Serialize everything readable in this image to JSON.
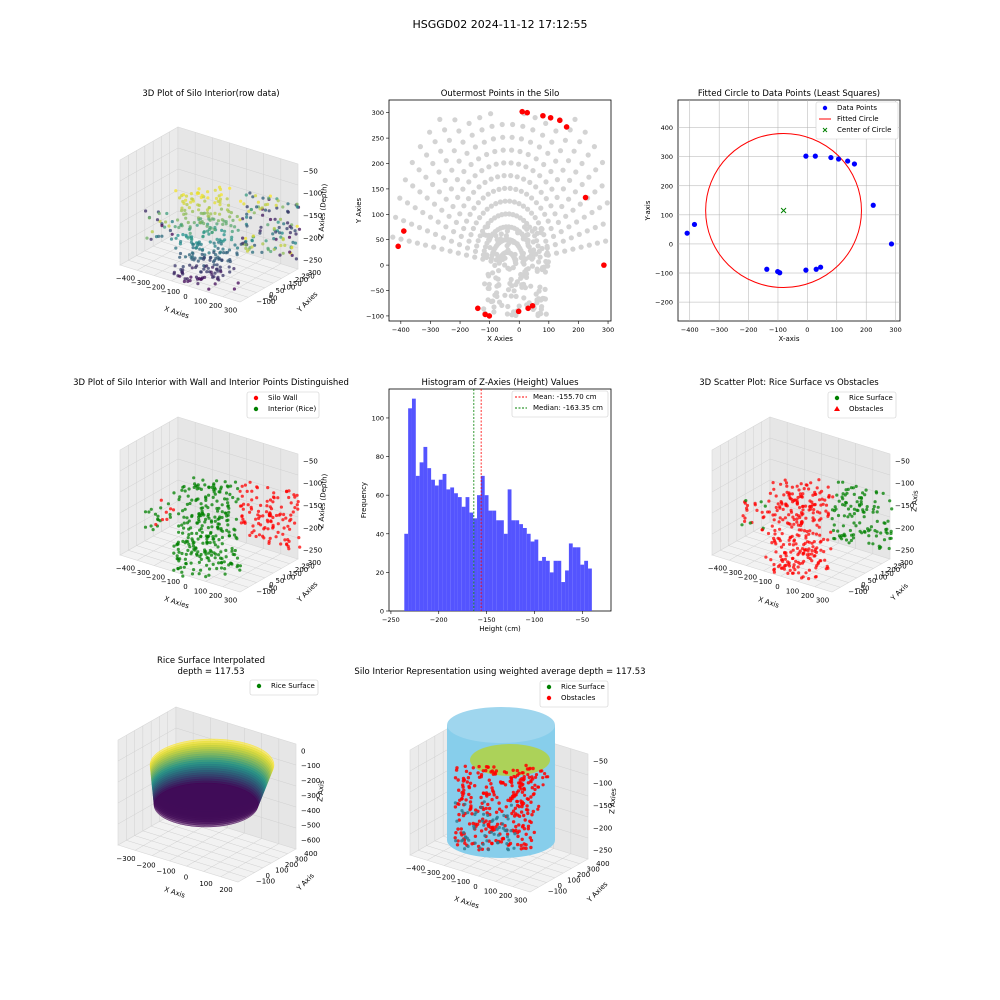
{
  "figure_title": "HSGGD02 2024-11-12 17:12:55",
  "colors": {
    "gray_points": "#d3d3d3",
    "red": "#ff0000",
    "blue": "#0000ff",
    "green": "#008000",
    "hist": "#4b4bff",
    "sky": "#87ceeb",
    "viridis_low": "#440154",
    "viridis_mid": "#21918c",
    "viridis_high": "#fde725"
  },
  "chart_data": [
    {
      "id": "p1",
      "type": "scatter3d",
      "title": "3D Plot of Silo Interior(row data)",
      "xlabel": "X Axies",
      "ylabel": "Y Axies",
      "zlabel": "Z Axies (Depth)",
      "xticks": [
        "−400",
        "−300",
        "−200",
        "−100",
        "0",
        "100",
        "200",
        "300"
      ],
      "yticks": [
        "−100",
        "−50",
        "0",
        "50",
        "100",
        "150",
        "200",
        "250",
        "300"
      ],
      "zticks": [
        "−50",
        "−100",
        "−150",
        "−200",
        "−250"
      ],
      "colormap": "viridis"
    },
    {
      "id": "p2",
      "type": "scatter",
      "title": "Outermost Points in the Silo",
      "xlabel": "X Axies",
      "ylabel": "Y Axies",
      "xlim": [
        -440,
        310
      ],
      "ylim": [
        -110,
        325
      ],
      "xticks": [
        -400,
        -300,
        -200,
        -100,
        0,
        100,
        200,
        300
      ],
      "yticks": [
        -100,
        -50,
        0,
        50,
        100,
        150,
        200,
        250,
        300
      ],
      "outer_points": [
        [
          10,
          302
        ],
        [
          27,
          300
        ],
        [
          80,
          294
        ],
        [
          106,
          290
        ],
        [
          137,
          285
        ],
        [
          160,
          272
        ],
        [
          224,
          133
        ],
        [
          286,
          0
        ],
        [
          -409,
          37
        ],
        [
          -390,
          67
        ],
        [
          -140,
          -85
        ],
        [
          -115,
          -97
        ],
        [
          -101,
          -100
        ],
        [
          -2,
          -91
        ],
        [
          30,
          -85
        ],
        [
          45,
          -80
        ]
      ]
    },
    {
      "id": "p3",
      "type": "scatter",
      "title": "Fitted Circle to Data Points (Least Squares)",
      "xlabel": "X-axis",
      "ylabel": "Y-axis",
      "xlim": [
        -440,
        315
      ],
      "ylim": [
        -265,
        495
      ],
      "xticks": [
        -400,
        -300,
        -200,
        -100,
        0,
        100,
        200,
        300
      ],
      "yticks": [
        -200,
        -100,
        0,
        100,
        200,
        300,
        400
      ],
      "grid": true,
      "legend_position": "upper right",
      "legend": [
        "Data Points",
        "Fitted Circle",
        "Center of Circle"
      ],
      "data_points": [
        [
          -409,
          37
        ],
        [
          -384,
          67
        ],
        [
          -138,
          -87
        ],
        [
          -101,
          -95
        ],
        [
          -94,
          -99
        ],
        [
          -5,
          -90
        ],
        [
          30,
          -87
        ],
        [
          45,
          -80
        ],
        [
          -5,
          302
        ],
        [
          27,
          302
        ],
        [
          80,
          297
        ],
        [
          106,
          292
        ],
        [
          137,
          285
        ],
        [
          160,
          275
        ],
        [
          224,
          133
        ],
        [
          286,
          0
        ]
      ],
      "circle": {
        "cx": -81,
        "cy": 115,
        "r": 265
      },
      "center": [
        -81,
        115
      ]
    },
    {
      "id": "p4",
      "type": "scatter3d",
      "title": "3D Plot of Silo Interior with Wall and Interior Points Distinguished",
      "xlabel": "X Axies",
      "ylabel": "Y Axies",
      "zlabel": "Z Axies (Depth)",
      "xticks": [
        "−400",
        "−300",
        "−200",
        "−100",
        "0",
        "100",
        "200",
        "300"
      ],
      "yticks": [
        "−100",
        "−50",
        "0",
        "50",
        "100",
        "150",
        "200",
        "250",
        "300"
      ],
      "zticks": [
        "−50",
        "−100",
        "−150",
        "−200",
        "−250"
      ],
      "legend": [
        "Silo Wall",
        "Interior (Rice)"
      ]
    },
    {
      "id": "p5",
      "type": "bar",
      "title": "Histogram of Z-Axies (Height) Values",
      "xlabel": "Height (cm)",
      "ylabel": "Frequency",
      "xlim": [
        -252,
        -20
      ],
      "ylim": [
        0,
        115
      ],
      "xticks": [
        -250,
        -200,
        -150,
        -100,
        -50
      ],
      "yticks": [
        0,
        20,
        40,
        60,
        80,
        100
      ],
      "bin_start": -236,
      "bin_width": 4,
      "values": [
        40,
        105,
        110,
        70,
        77,
        85,
        74,
        68,
        65,
        68,
        71,
        63,
        64,
        61,
        59,
        54,
        59,
        51,
        48,
        60,
        70,
        60,
        52,
        52,
        47,
        47,
        40,
        63,
        47,
        47,
        45,
        43,
        40,
        36,
        37,
        26,
        28,
        26,
        20,
        26,
        26,
        15,
        21,
        35,
        33,
        33,
        24,
        26,
        22
      ],
      "mean_line": {
        "label": "Mean: -155.70 cm",
        "value": -155.7
      },
      "median_line": {
        "label": "Median: -163.35 cm",
        "value": -163.35
      },
      "legend_position": "upper right"
    },
    {
      "id": "p6",
      "type": "scatter3d",
      "title": "3D Scatter Plot: Rice Surface vs Obstacles",
      "xlabel": "X Axis",
      "ylabel": "Y Axis",
      "zlabel": "Z Axis",
      "xticks": [
        "−400",
        "−300",
        "−200",
        "−100",
        "0",
        "100",
        "200",
        "300"
      ],
      "yticks": [
        "−100",
        "−50",
        "0",
        "50",
        "100",
        "150",
        "200",
        "250",
        "300"
      ],
      "zticks": [
        "−50",
        "−100",
        "−150",
        "−200",
        "−250"
      ],
      "legend": [
        "Rice Surface",
        "Obstacles"
      ]
    },
    {
      "id": "p7",
      "type": "surface3d",
      "title": "Rice Surface Interpolated",
      "subtitle": "depth = 117.53",
      "xlabel": "X Axis",
      "ylabel": "Y Axis",
      "zlabel": "Z Axis",
      "xticks": [
        "−300",
        "−200",
        "−100",
        "0",
        "100",
        "200"
      ],
      "yticks": [
        "−100",
        "0",
        "100",
        "200",
        "300",
        "400"
      ],
      "zticks": [
        "0",
        "−100",
        "−200",
        "−300",
        "−400",
        "−500",
        "−600"
      ],
      "legend": [
        "Rice Surface"
      ]
    },
    {
      "id": "p8",
      "type": "scatter3d",
      "title": "Silo Interior Representation using weighted average depth = 117.53",
      "xlabel": "X Axies",
      "ylabel": "Y Axies",
      "zlabel": "Z Axies",
      "xticks": [
        "−400",
        "−300",
        "−200",
        "−100",
        "0",
        "100",
        "200",
        "300"
      ],
      "yticks": [
        "−100",
        "0",
        "100",
        "200",
        "300",
        "400"
      ],
      "zticks": [
        "−50",
        "−100",
        "−150",
        "−200",
        "−250"
      ],
      "legend": [
        "Rice Surface",
        "Obstacles"
      ]
    }
  ]
}
